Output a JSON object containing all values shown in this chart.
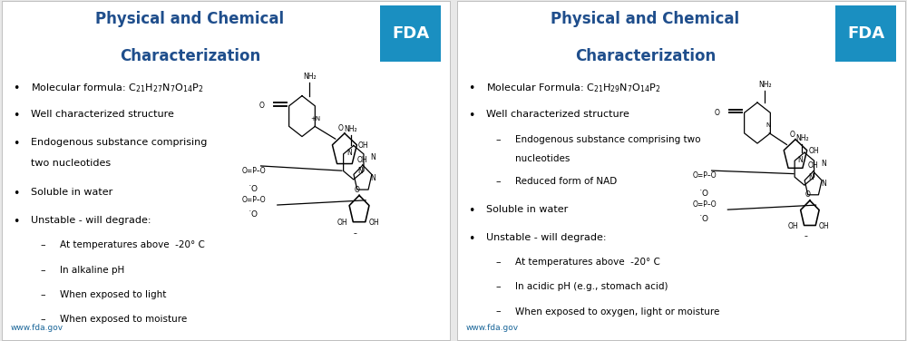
{
  "bg_color": "#e8e8e8",
  "panel_bg": "#ffffff",
  "divider_color": "#aaaaaa",
  "title_color": "#1f4e8c",
  "url_color": "#1a6699",
  "fda_bg": "#1a8fc1",
  "fda_text": "#ffffff",
  "left_title_line1": "Physical and Chemical",
  "left_title_line2": "Characterization",
  "right_title_line1": "Physical and Chemical",
  "right_title_line2": "Characterization",
  "url_text": "www.fda.gov",
  "left_formula": "Molecular formula: $\\mathregular{C_{21}H_{27}N_7O_{14}P_2}$",
  "right_formula": "Molecular Formula: $\\mathregular{C_{21}H_{29}N_7O_{14}P_2}$",
  "left_sub_bullets": [
    "At temperatures above  -20° C",
    "In alkaline pH",
    "When exposed to light",
    "When exposed to moisture"
  ],
  "right_sub_bullets_well": [
    "Endogenous substance comprising two",
    "    nucleotides",
    "Reduced form of NAD"
  ],
  "right_sub_bullets_unstable": [
    "At temperatures above  -20° C",
    "In acidic pH (e.g., stomach acid)",
    "When exposed to oxygen, light or moisture"
  ]
}
